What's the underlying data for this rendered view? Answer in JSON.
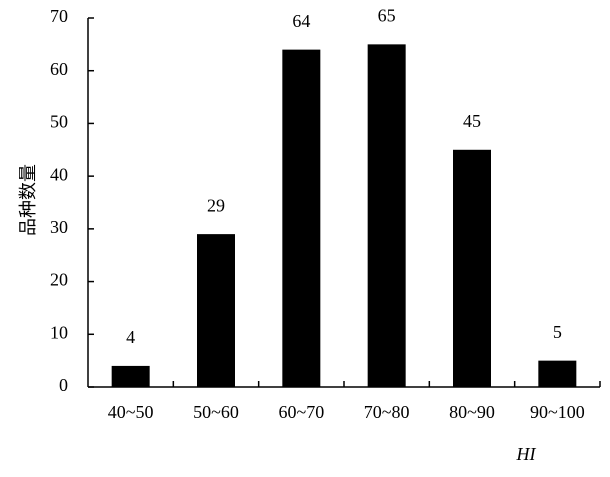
{
  "chart_data": {
    "type": "bar",
    "y_label": "品种数量",
    "x_label": "HI",
    "categories": [
      "40~50",
      "50~60",
      "60~70",
      "70~80",
      "80~90",
      "90~100"
    ],
    "values": [
      4,
      29,
      64,
      65,
      45,
      5
    ],
    "color": "#000000",
    "ylim": [
      0,
      70
    ],
    "yticks": [
      0,
      10,
      20,
      30,
      40,
      50,
      60,
      70
    ]
  }
}
